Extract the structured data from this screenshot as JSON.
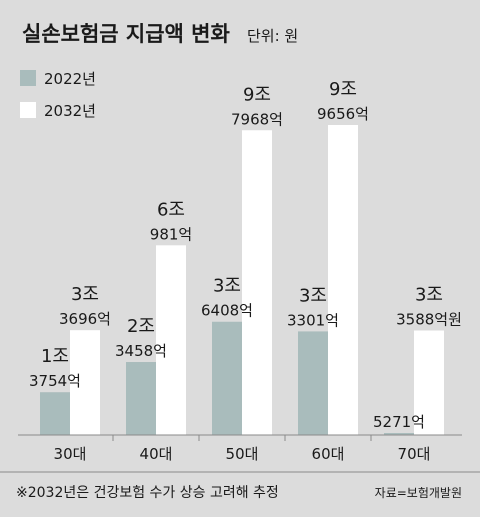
{
  "chart_data": {
    "type": "bar",
    "title": "실손보험금 지급액 변화",
    "unit_label": "단위: 원",
    "categories": [
      "30대",
      "40대",
      "50대",
      "60대",
      "70대"
    ],
    "series": [
      {
        "name": "2022년",
        "color": "#a9bcbc",
        "values": [
          137540000000000,
          234580000000000,
          364080000000000,
          333010000000000,
          527100000000
        ],
        "labels": [
          [
            "1조",
            "3754억"
          ],
          [
            "2조",
            "3458억"
          ],
          [
            "3조",
            "6408억"
          ],
          [
            "3조",
            "3301억"
          ],
          [
            "5271억"
          ]
        ]
      },
      {
        "name": "2032년",
        "color": "#ffffff",
        "values": [
          336960000000000,
          609810000000000,
          979680000000000,
          996560000000000,
          335880000000000
        ],
        "labels": [
          [
            "3조",
            "3696억"
          ],
          [
            "6조",
            "981억"
          ],
          [
            "9조",
            "7968억"
          ],
          [
            "9조",
            "9656억"
          ],
          [
            "3조",
            "3588억원"
          ]
        ]
      }
    ],
    "footnote": "※2032년은 건강보험 수가 상승 고려해 추정",
    "source": "자료=보험개발원"
  }
}
